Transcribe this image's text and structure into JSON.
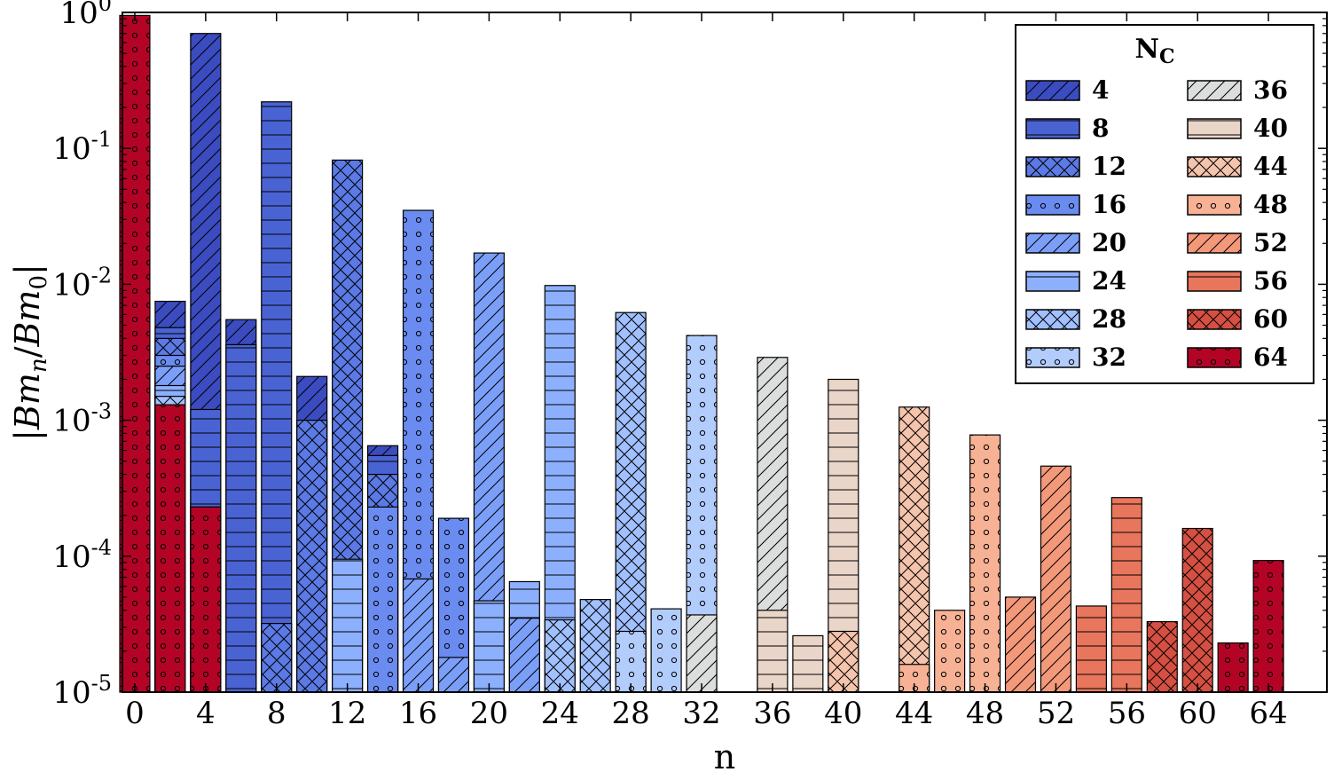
{
  "chart_data": {
    "type": "bar",
    "title": "",
    "xlabel": "n",
    "ylabel": "|Bm_n/Bm_0|",
    "ylabel_parts": {
      "open": "|",
      "m1": "Bm",
      "s1": "n",
      "slash": "/",
      "m2": "Bm",
      "s2": "0",
      "close": "|"
    },
    "yscale": "log",
    "ylim": [
      1e-05,
      1.0
    ],
    "xlim": [
      -0.7,
      67.3
    ],
    "x_ticks": [
      0,
      4,
      8,
      12,
      16,
      20,
      24,
      28,
      32,
      36,
      40,
      44,
      48,
      52,
      56,
      60,
      64
    ],
    "x_tick_labels": [
      "0",
      "4",
      "8",
      "12",
      "16",
      "20",
      "24",
      "28",
      "32",
      "36",
      "40",
      "44",
      "48",
      "52",
      "56",
      "60",
      "64"
    ],
    "y_ticks": [
      {
        "value": 1e-05,
        "base": "10",
        "exp": "-5"
      },
      {
        "value": 0.0001,
        "base": "10",
        "exp": "-4"
      },
      {
        "value": 0.001,
        "base": "10",
        "exp": "-3"
      },
      {
        "value": 0.01,
        "base": "10",
        "exp": "-2"
      },
      {
        "value": 0.1,
        "base": "10",
        "exp": "-1"
      },
      {
        "value": 1,
        "base": "10",
        "exp": "0"
      }
    ],
    "grid": false,
    "legend": {
      "title": "N",
      "title_sub": "C",
      "position": "top-right",
      "columns": 2
    },
    "series": [
      {
        "name": "4",
        "color": "#3b4cc0",
        "hatch": "diag",
        "x": [
          2,
          4,
          6,
          8,
          10,
          12,
          14
        ],
        "values": [
          0.0075,
          0.7,
          0.0055,
          0.0,
          0.0021,
          0.0,
          0.00065
        ]
      },
      {
        "name": "8",
        "color": "#4a63d3",
        "hatch": "horiz",
        "x": [
          2,
          4,
          6,
          8,
          10,
          12,
          14,
          16,
          20,
          24
        ],
        "values": [
          0.0048,
          0.0012,
          0.0036,
          0.22,
          0.0,
          0.0,
          0.00055,
          0.0,
          0.0,
          0.0
        ]
      },
      {
        "name": "12",
        "color": "#5b7ae5",
        "hatch": "cross",
        "x": [
          2,
          4,
          8,
          10,
          12,
          14,
          16
        ],
        "values": [
          0.004,
          0.0,
          3.2e-05,
          0.001,
          0.082,
          0.0004,
          0.0
        ]
      },
      {
        "name": "16",
        "color": "#6a8bef",
        "hatch": "dots",
        "x": [
          2,
          4,
          12,
          14,
          16,
          18
        ],
        "values": [
          0.003,
          0.00023,
          0.0,
          0.00023,
          0.035,
          0.00019
        ]
      },
      {
        "name": "20",
        "color": "#7b9ff9",
        "hatch": "diag",
        "x": [
          2,
          16,
          18,
          20,
          22
        ],
        "values": [
          0.0025,
          6.8e-05,
          1.8e-05,
          0.017,
          3.5e-05
        ]
      },
      {
        "name": "24",
        "color": "#8db0fe",
        "hatch": "horiz",
        "x": [
          2,
          12,
          20,
          22,
          24,
          26
        ],
        "values": [
          0.0018,
          9.5e-05,
          4.7e-05,
          6.5e-05,
          0.0098,
          0.0
        ]
      },
      {
        "name": "28",
        "color": "#a1c0ff",
        "hatch": "cross",
        "x": [
          2,
          24,
          26,
          28
        ],
        "values": [
          0.0015,
          3.4e-05,
          4.8e-05,
          0.0062
        ]
      },
      {
        "name": "32",
        "color": "#b2ccfb",
        "hatch": "dots",
        "x": [
          28,
          30,
          32
        ],
        "values": [
          2.8e-05,
          4.1e-05,
          0.0042
        ]
      },
      {
        "name": "36",
        "color": "#dcdddd",
        "hatch": "diag",
        "x": [
          32,
          36
        ],
        "values": [
          3.7e-05,
          0.0029
        ]
      },
      {
        "name": "40",
        "color": "#ead5c9",
        "hatch": "horiz",
        "x": [
          36,
          38,
          40
        ],
        "values": [
          4e-05,
          2.6e-05,
          0.002
        ]
      },
      {
        "name": "44",
        "color": "#f5c4ac",
        "hatch": "cross",
        "x": [
          40,
          44
        ],
        "values": [
          2.8e-05,
          0.00125
        ]
      },
      {
        "name": "48",
        "color": "#f7b194",
        "hatch": "dots",
        "x": [
          44,
          46,
          48
        ],
        "values": [
          1.6e-05,
          4e-05,
          0.00078
        ]
      },
      {
        "name": "52",
        "color": "#f4987a",
        "hatch": "diag",
        "x": [
          50,
          52
        ],
        "values": [
          5e-05,
          0.00046
        ]
      },
      {
        "name": "56",
        "color": "#e8765c",
        "hatch": "horiz",
        "x": [
          54,
          56
        ],
        "values": [
          4.3e-05,
          0.00027
        ]
      },
      {
        "name": "60",
        "color": "#d55042",
        "hatch": "cross",
        "x": [
          58,
          60
        ],
        "values": [
          3.3e-05,
          0.00016
        ]
      },
      {
        "name": "64",
        "color": "#b40426",
        "hatch": "dots",
        "x": [
          0,
          2,
          4,
          62,
          64
        ],
        "values": [
          0.95,
          0.0013,
          0.00023,
          2.3e-05,
          9.3e-05
        ]
      }
    ]
  }
}
